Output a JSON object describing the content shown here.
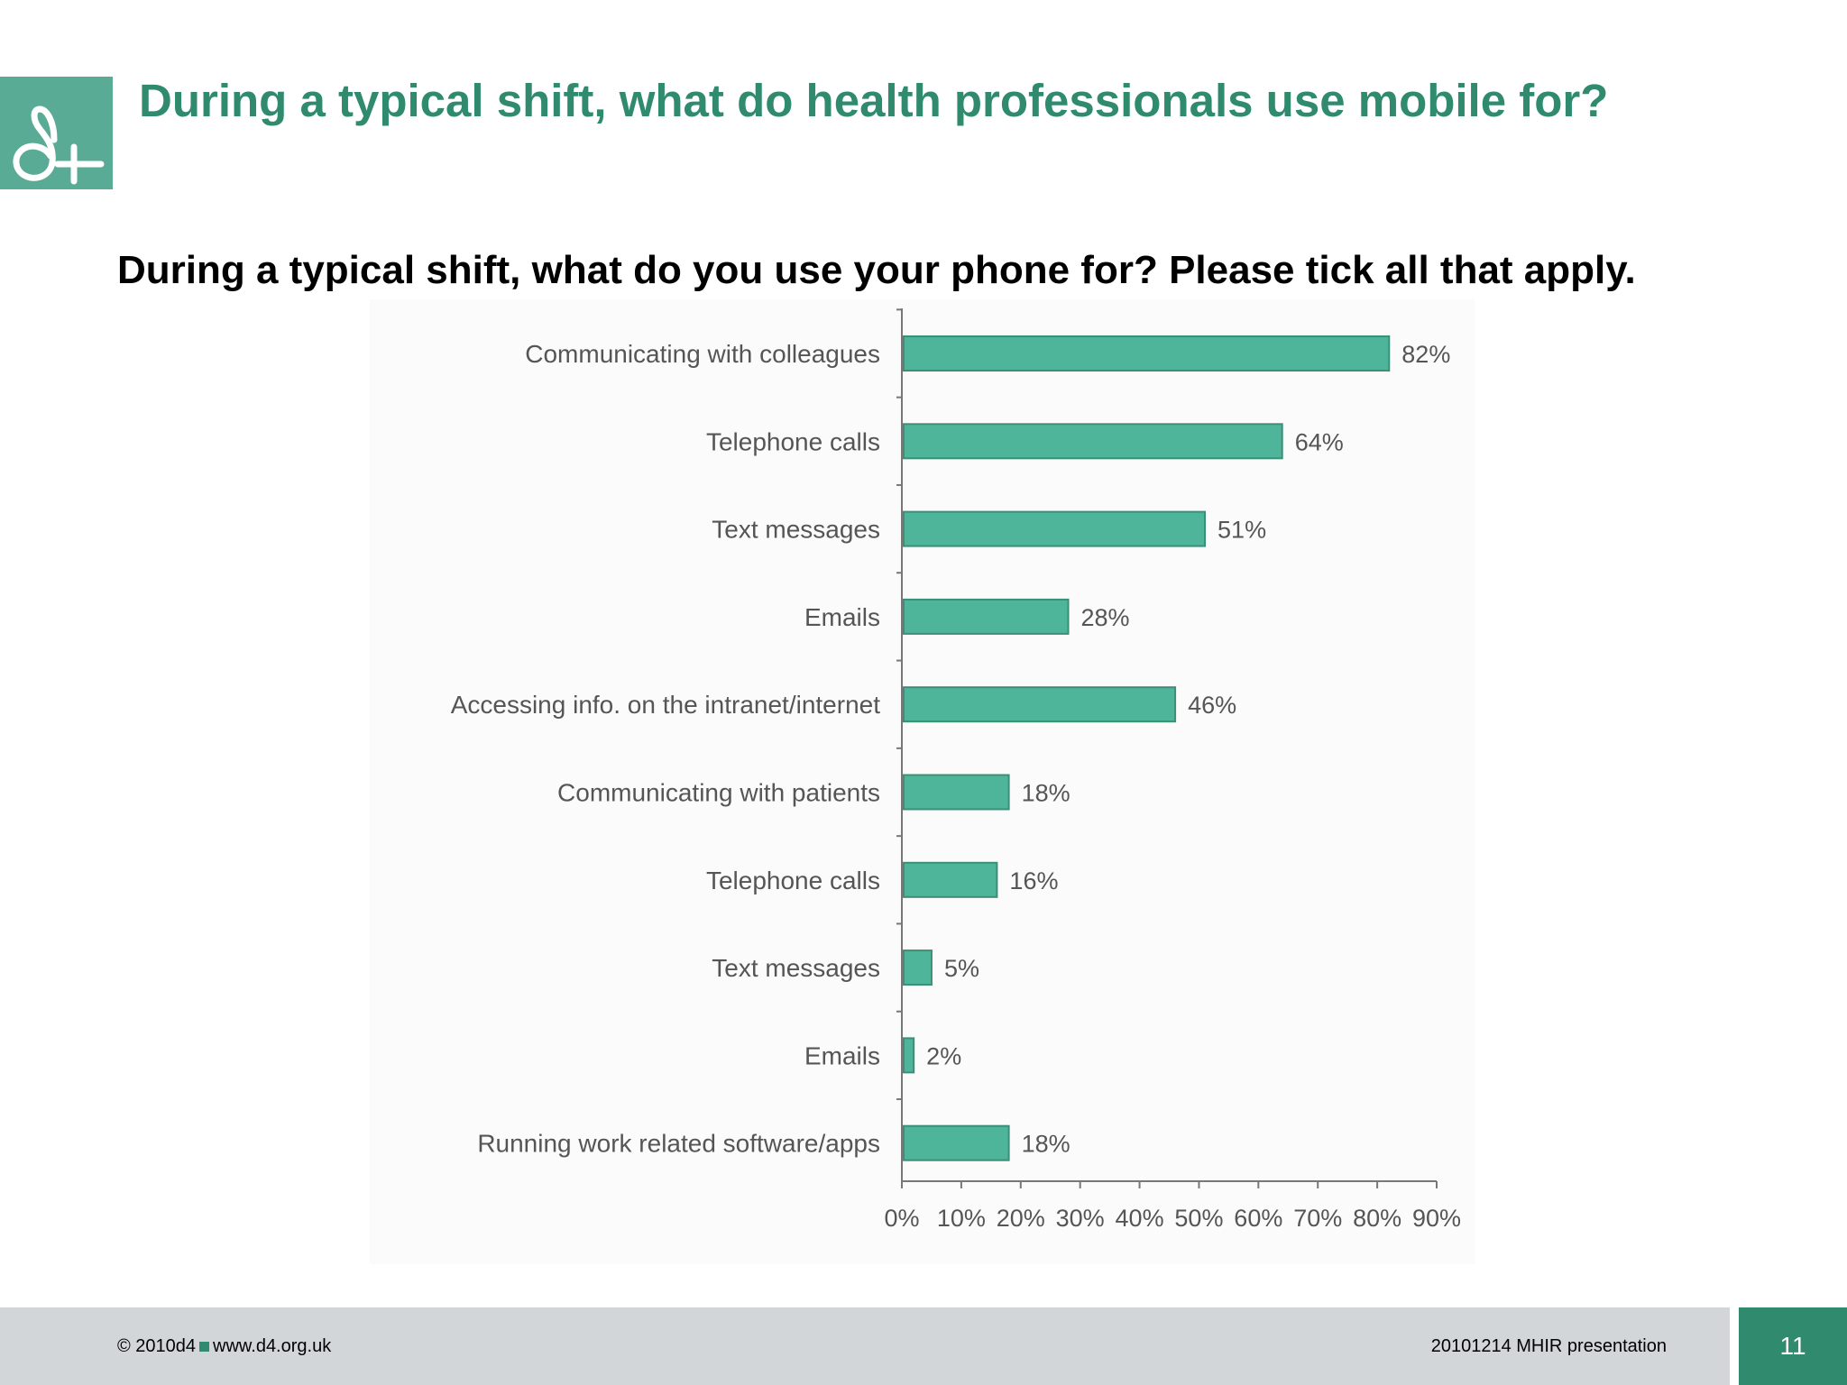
{
  "header": {
    "title": "During a typical shift, what do health professionals use mobile for?"
  },
  "question": "During a typical shift, what do you use your phone for?  Please tick all that apply.",
  "footer": {
    "copyright": "© 2010d4",
    "website": "www.d4.org.uk",
    "presentation": "20101214 MHIR presentation",
    "page_number": "11"
  },
  "colors": {
    "accent": "#2f8a6e",
    "bar_fill": "#4fb59a",
    "bar_stroke": "#3a8f76",
    "footer_bg": "#d3d6d8",
    "logo_bg": "#5aab95"
  },
  "logo": {
    "icon": "d4-logo-icon"
  },
  "chart_data": {
    "type": "bar",
    "orientation": "horizontal",
    "categories": [
      "Communicating with colleagues",
      "Telephone calls",
      "Text messages",
      "Emails",
      "Accessing info. on the intranet/internet",
      "Communicating with patients",
      "Telephone calls",
      "Text messages",
      "Emails",
      "Running work related software/apps"
    ],
    "values": [
      82,
      64,
      51,
      28,
      46,
      18,
      16,
      5,
      2,
      18
    ],
    "data_labels": [
      "82%",
      "64%",
      "51%",
      "28%",
      "46%",
      "18%",
      "16%",
      "5%",
      "2%",
      "18%"
    ],
    "x_ticks": [
      "0%",
      "10%",
      "20%",
      "30%",
      "40%",
      "50%",
      "60%",
      "70%",
      "80%",
      "90%"
    ],
    "xlim": [
      0,
      90
    ],
    "unit": "%",
    "grid": false,
    "legend": "none"
  }
}
